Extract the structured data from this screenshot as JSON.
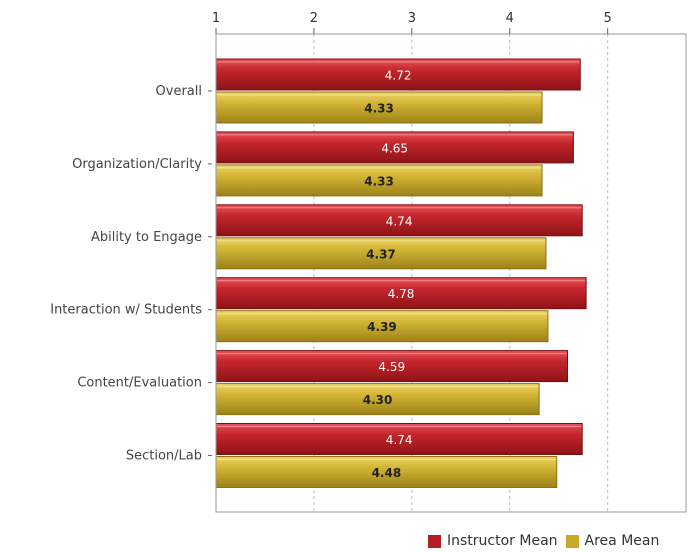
{
  "chart_data": {
    "type": "bar",
    "orientation": "horizontal",
    "categories": [
      "Overall",
      "Organization/Clarity",
      "Ability to Engage",
      "Interaction w/ Students",
      "Content/Evaluation",
      "Section/Lab"
    ],
    "series": [
      {
        "name": "Instructor Mean",
        "color": "#b41d22",
        "values": [
          4.72,
          4.65,
          4.74,
          4.78,
          4.59,
          4.74
        ],
        "labels": [
          "4.72",
          "4.65",
          "4.74",
          "4.78",
          "4.59",
          "4.74"
        ]
      },
      {
        "name": "Area Mean",
        "color": "#c9a92a",
        "values": [
          4.33,
          4.33,
          4.37,
          4.39,
          4.3,
          4.48
        ],
        "labels": [
          "4.33",
          "4.33",
          "4.37",
          "4.39",
          "4.30",
          "4.48"
        ]
      }
    ],
    "xlim": [
      1,
      5.8
    ],
    "xticks": [
      "1",
      "2",
      "3",
      "4",
      "5"
    ],
    "axis_position": "top",
    "grid": true,
    "legend_placement": "bottom-right"
  }
}
